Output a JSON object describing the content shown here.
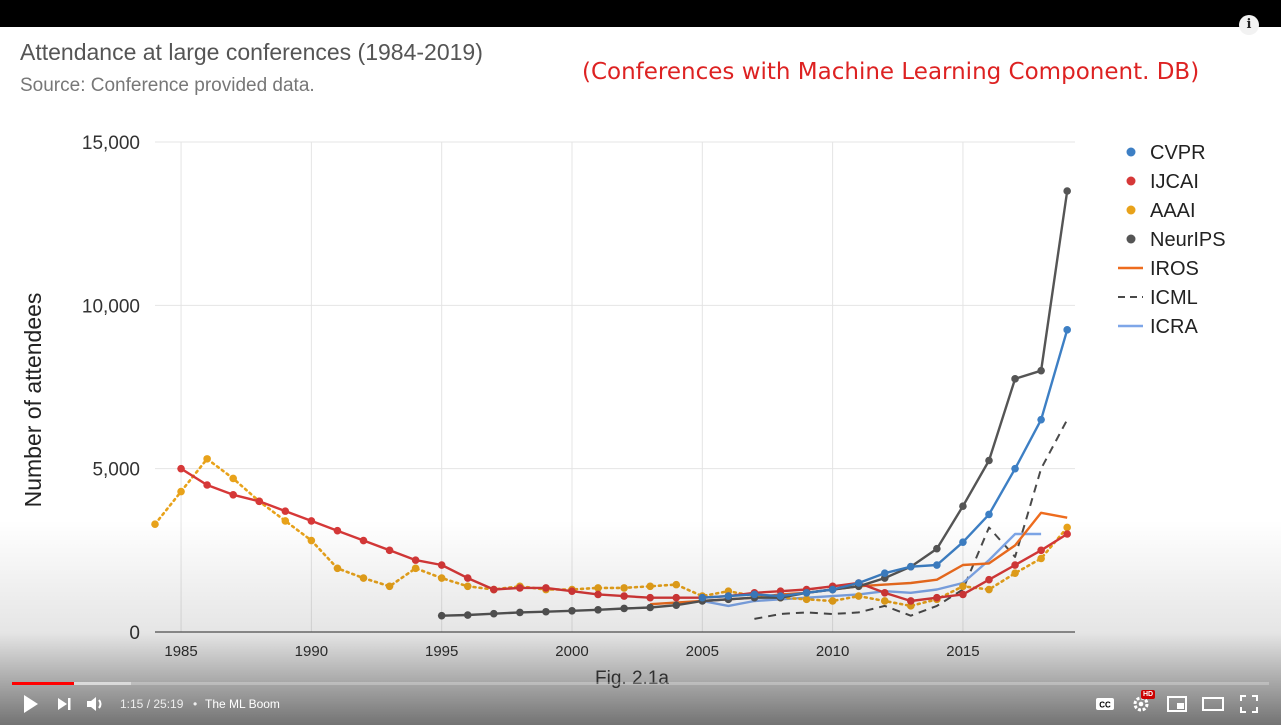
{
  "player": {
    "time_current": "1:15",
    "time_total": "25:19",
    "time_separator": "•",
    "channel": "The ML Boom",
    "progress_fraction": 0.049,
    "buffer_fraction": 0.095,
    "hd_label": "HD",
    "info_label": "i",
    "icons": [
      "play-icon",
      "next-icon",
      "volume-icon",
      "captions-icon",
      "settings-icon",
      "miniplayer-icon",
      "theater-icon",
      "fullscreen-icon"
    ]
  },
  "annotation": "(Conferences with Machine Learning Component. DB)",
  "colors": {
    "annotation": "#dd2222",
    "progress": "#ff0000",
    "CVPR": "#3d7fc4",
    "IJCAI": "#d63838",
    "AAAI": "#e8a21a",
    "NeurIPS": "#555555",
    "IROS": "#ee6c1e",
    "ICML": "#4a4a4a",
    "ICRA": "#7ea6e8"
  },
  "chart_data": {
    "type": "line",
    "title": "Attendance at large conferences (1984-2019)",
    "subtitle": "Source: Conference provided data.",
    "caption": "Fig. 2.1a",
    "xlabel": "",
    "ylabel": "Number of attendees",
    "xlim": [
      1984,
      2019.3
    ],
    "ylim": [
      0,
      15000
    ],
    "x_ticks": [
      "1985",
      "1990",
      "1995",
      "2000",
      "2005",
      "2010",
      "2015"
    ],
    "y_ticks": [
      "0",
      "5,000",
      "10,000",
      "15,000"
    ],
    "grid": true,
    "legend_position": "right",
    "series": [
      {
        "name": "CVPR",
        "style": "line-markers",
        "x": [
          2005,
          2006,
          2007,
          2008,
          2009,
          2010,
          2011,
          2012,
          2013,
          2014,
          2015,
          2016,
          2017,
          2018,
          2019
        ],
        "y": [
          1050,
          1100,
          1150,
          1100,
          1200,
          1300,
          1500,
          1800,
          2000,
          2050,
          2750,
          3600,
          5000,
          6500,
          9250
        ]
      },
      {
        "name": "IJCAI",
        "style": "line-markers",
        "x": [
          1985,
          1986,
          1987,
          1988,
          1989,
          1990,
          1991,
          1992,
          1993,
          1994,
          1995,
          1996,
          1997,
          1998,
          1999,
          2000,
          2001,
          2002,
          2003,
          2004,
          2005,
          2006,
          2007,
          2008,
          2009,
          2010,
          2011,
          2012,
          2013,
          2014,
          2015,
          2016,
          2017,
          2018,
          2019
        ],
        "y": [
          5000,
          4500,
          4200,
          4000,
          3700,
          3400,
          3100,
          2800,
          2500,
          2200,
          2050,
          1650,
          1300,
          1350,
          1350,
          1250,
          1150,
          1100,
          1050,
          1050,
          1050,
          1100,
          1200,
          1250,
          1300,
          1400,
          1500,
          1200,
          950,
          1050,
          1150,
          1600,
          2050,
          2500,
          3000
        ]
      },
      {
        "name": "AAAI",
        "style": "dotted-markers",
        "x": [
          1984,
          1985,
          1986,
          1987,
          1988,
          1989,
          1990,
          1991,
          1992,
          1993,
          1994,
          1995,
          1996,
          1997,
          1998,
          1999,
          2000,
          2001,
          2002,
          2003,
          2004,
          2005,
          2006,
          2007,
          2008,
          2009,
          2010,
          2011,
          2012,
          2013,
          2014,
          2015,
          2016,
          2017,
          2018,
          2019
        ],
        "y": [
          3300,
          4300,
          5300,
          4700,
          4000,
          3400,
          2800,
          1950,
          1650,
          1400,
          1950,
          1650,
          1400,
          1300,
          1400,
          1300,
          1300,
          1350,
          1350,
          1400,
          1450,
          1100,
          1250,
          1100,
          1050,
          1000,
          950,
          1100,
          950,
          800,
          1000,
          1400,
          1300,
          1800,
          2250,
          3200
        ]
      },
      {
        "name": "NeurIPS",
        "style": "line-markers",
        "x": [
          1995,
          1996,
          1997,
          1998,
          1999,
          2000,
          2001,
          2002,
          2003,
          2004,
          2005,
          2006,
          2007,
          2008,
          2009,
          2010,
          2011,
          2012,
          2013,
          2014,
          2015,
          2016,
          2017,
          2018,
          2019
        ],
        "y": [
          500,
          520,
          560,
          600,
          620,
          650,
          680,
          720,
          750,
          820,
          950,
          1000,
          1050,
          1050,
          1200,
          1300,
          1400,
          1650,
          2000,
          2550,
          3850,
          5250,
          7750,
          8000,
          13500
        ]
      },
      {
        "name": "IROS",
        "style": "line",
        "x": [
          2003,
          2004,
          2005,
          2006,
          2007,
          2008,
          2009,
          2010,
          2011,
          2012,
          2013,
          2014,
          2015,
          2016,
          2017,
          2018,
          2019
        ],
        "y": [
          850,
          900,
          950,
          1000,
          1050,
          1150,
          1200,
          1300,
          1400,
          1450,
          1500,
          1600,
          2050,
          2100,
          2650,
          3650,
          3500
        ]
      },
      {
        "name": "ICML",
        "style": "dashed",
        "x": [
          2007,
          2008,
          2009,
          2010,
          2011,
          2012,
          2013,
          2014,
          2015,
          2016,
          2017,
          2018,
          2019
        ],
        "y": [
          400,
          550,
          600,
          550,
          600,
          800,
          500,
          800,
          1300,
          3200,
          2300,
          5000,
          6500
        ]
      },
      {
        "name": "ICRA",
        "style": "line",
        "x": [
          2005,
          2006,
          2007,
          2008,
          2009,
          2010,
          2011,
          2012,
          2013,
          2014,
          2015,
          2016,
          2017,
          2018
        ],
        "y": [
          950,
          800,
          950,
          1000,
          1050,
          1100,
          1150,
          1250,
          1200,
          1300,
          1500,
          2200,
          3000,
          3000
        ]
      }
    ]
  }
}
